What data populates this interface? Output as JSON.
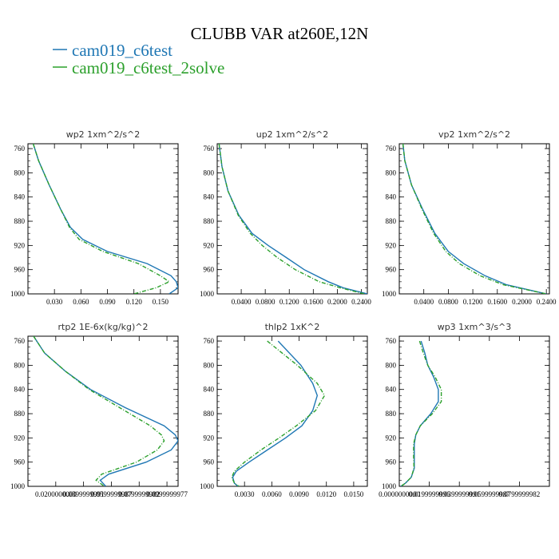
{
  "chart_data": {
    "title": "CLUBB VAR at260E,12N",
    "legend": [
      {
        "name": "cam019_c6test",
        "color": "#1f77b4"
      },
      {
        "name": "cam019_c6test_2solve",
        "color": "#2ca02c"
      }
    ],
    "y_ticks": [
      "760",
      "800",
      "840",
      "880",
      "920",
      "960",
      "1000"
    ],
    "panels": [
      {
        "type": "line",
        "title": "wp2  1xm^2/s^2",
        "xlim": [
          0,
          0.17
        ],
        "ylim": [
          1000,
          752
        ],
        "x_ticks": [
          {
            "v": 0.03,
            "t": "0.030"
          },
          {
            "v": 0.06,
            "t": "0.060"
          },
          {
            "v": 0.09,
            "t": "0.090"
          },
          {
            "v": 0.12,
            "t": "0.120"
          },
          {
            "v": 0.15,
            "t": "0.150"
          }
        ],
        "series": [
          {
            "name": "cam019_c6test",
            "y": [
              752,
              780,
              820,
              860,
              890,
              910,
              930,
              950,
              970,
              980,
              990,
              1000
            ],
            "x": [
              0.006,
              0.012,
              0.024,
              0.037,
              0.048,
              0.062,
              0.09,
              0.135,
              0.162,
              0.168,
              0.17,
              0.16
            ]
          },
          {
            "name": "cam019_c6test_2solve",
            "y": [
              752,
              780,
              820,
              860,
              890,
              910,
              930,
              950,
              970,
              980,
              990,
              1000
            ],
            "x": [
              0.006,
              0.012,
              0.024,
              0.037,
              0.047,
              0.058,
              0.085,
              0.125,
              0.15,
              0.16,
              0.145,
              0.12
            ]
          }
        ]
      },
      {
        "type": "line",
        "title": "up2  1xm^2/s^2",
        "xlim": [
          0,
          0.25
        ],
        "ylim": [
          1000,
          752
        ],
        "x_ticks": [
          {
            "v": 0.04,
            "t": "0.0400"
          },
          {
            "v": 0.08,
            "t": "0.0800"
          },
          {
            "v": 0.12,
            "t": "0.1200"
          },
          {
            "v": 0.16,
            "t": "0.1600"
          },
          {
            "v": 0.2,
            "t": "0.2000"
          },
          {
            "v": 0.24,
            "t": "0.2400"
          }
        ],
        "series": [
          {
            "name": "cam019_c6test",
            "y": [
              752,
              790,
              830,
              870,
              900,
              920,
              940,
              960,
              980,
              990,
              1000
            ],
            "x": [
              0.003,
              0.008,
              0.018,
              0.036,
              0.058,
              0.085,
              0.115,
              0.145,
              0.185,
              0.21,
              0.25
            ]
          },
          {
            "name": "cam019_c6test_2solve",
            "y": [
              752,
              790,
              830,
              870,
              900,
              920,
              940,
              960,
              980,
              990,
              1000
            ],
            "x": [
              0.003,
              0.008,
              0.018,
              0.035,
              0.055,
              0.075,
              0.1,
              0.13,
              0.17,
              0.205,
              0.245
            ]
          }
        ]
      },
      {
        "type": "line",
        "title": "vp2  1xm^2/s^2",
        "xlim": [
          0,
          0.245
        ],
        "ylim": [
          1000,
          752
        ],
        "x_ticks": [
          {
            "v": 0.04,
            "t": "0.0400"
          },
          {
            "v": 0.08,
            "t": "0.0800"
          },
          {
            "v": 0.12,
            "t": "0.1200"
          },
          {
            "v": 0.16,
            "t": "0.1600"
          },
          {
            "v": 0.2,
            "t": "0.2000"
          },
          {
            "v": 0.24,
            "t": "0.2400"
          }
        ],
        "series": [
          {
            "name": "cam019_c6test",
            "y": [
              752,
              780,
              820,
              860,
              900,
              930,
              950,
              970,
              985,
              1000
            ],
            "x": [
              0.006,
              0.009,
              0.02,
              0.038,
              0.058,
              0.08,
              0.105,
              0.14,
              0.175,
              0.24
            ]
          },
          {
            "name": "cam019_c6test_2solve",
            "y": [
              752,
              780,
              820,
              860,
              900,
              930,
              950,
              970,
              985,
              1000
            ],
            "x": [
              0.006,
              0.009,
              0.02,
              0.037,
              0.056,
              0.076,
              0.098,
              0.132,
              0.17,
              0.24
            ]
          }
        ]
      },
      {
        "type": "line",
        "title": "rtp2  1E-6x(kg/kg)^2",
        "xlim": [
          0,
          0.108
        ],
        "ylim": [
          1000,
          752
        ],
        "x_ticks": [
          {
            "v": 0.02,
            "t": "0.0200000000"
          },
          {
            "v": 0.04,
            "t": "0.0399999991"
          },
          {
            "v": 0.06,
            "t": "0.0599999987"
          },
          {
            "v": 0.08,
            "t": "0.0799999982"
          },
          {
            "v": 0.1,
            "t": "0.0999999977"
          }
        ],
        "series": [
          {
            "name": "cam019_c6test",
            "y": [
              752,
              780,
              810,
              840,
              870,
              900,
              915,
              925,
              940,
              960,
              980,
              990,
              1000
            ],
            "x": [
              0.004,
              0.012,
              0.027,
              0.045,
              0.07,
              0.098,
              0.106,
              0.108,
              0.103,
              0.085,
              0.058,
              0.052,
              0.056
            ]
          },
          {
            "name": "cam019_c6test_2solve",
            "y": [
              752,
              780,
              810,
              840,
              870,
              900,
              915,
              925,
              940,
              960,
              980,
              990,
              1000
            ],
            "x": [
              0.004,
              0.012,
              0.027,
              0.044,
              0.066,
              0.088,
              0.096,
              0.098,
              0.093,
              0.078,
              0.053,
              0.049,
              0.055
            ]
          }
        ]
      },
      {
        "type": "line",
        "title": "thlp2  1xK^2",
        "xlim": [
          0,
          0.0165
        ],
        "ylim": [
          1000,
          752
        ],
        "x_ticks": [
          {
            "v": 0.003,
            "t": "0.0030"
          },
          {
            "v": 0.006,
            "t": "0.0060"
          },
          {
            "v": 0.009,
            "t": "0.0090"
          },
          {
            "v": 0.012,
            "t": "0.0120"
          },
          {
            "v": 0.015,
            "t": "0.0150"
          }
        ],
        "series": [
          {
            "name": "cam019_c6test",
            "y": [
              760,
              800,
              830,
              850,
              875,
              900,
              920,
              940,
              960,
              975,
              985,
              995,
              1000
            ],
            "x": [
              0.0067,
              0.0092,
              0.0105,
              0.011,
              0.0105,
              0.0093,
              0.0075,
              0.0055,
              0.0035,
              0.0021,
              0.0017,
              0.0019,
              0.0023
            ]
          },
          {
            "name": "cam019_c6test_2solve",
            "y": [
              760,
              800,
              830,
              850,
              875,
              900,
              920,
              940,
              960,
              975,
              985,
              995,
              1000
            ],
            "x": [
              0.0055,
              0.0088,
              0.011,
              0.0118,
              0.0108,
              0.0087,
              0.0068,
              0.0048,
              0.003,
              0.0019,
              0.0016,
              0.0019,
              0.0024
            ]
          }
        ]
      },
      {
        "type": "line",
        "title": "wp3  1xm^3/s^3",
        "xlim": [
          0,
          0.1
        ],
        "ylim": [
          1000,
          752
        ],
        "x_ticks": [
          {
            "v": 0,
            "t": "0.0000000000"
          },
          {
            "v": 0.02,
            "t": "0.0199999996"
          },
          {
            "v": 0.04,
            "t": "0.0399999991"
          },
          {
            "v": 0.06,
            "t": "0.0599999987"
          },
          {
            "v": 0.08,
            "t": "0.0799999982"
          }
        ],
        "series": [
          {
            "name": "cam019_c6test",
            "y": [
              760,
              780,
              800,
              820,
              840,
              860,
              880,
              900,
              915,
              930,
              950,
              970,
              985,
              995,
              1000
            ],
            "x": [
              0.0145,
              0.017,
              0.019,
              0.023,
              0.026,
              0.026,
              0.021,
              0.014,
              0.011,
              0.01,
              0.01,
              0.01,
              0.008,
              0.004,
              0.001
            ]
          },
          {
            "name": "cam019_c6test_2solve",
            "y": [
              760,
              780,
              800,
              820,
              840,
              860,
              880,
              900,
              915,
              930,
              950,
              970,
              985,
              995,
              1000
            ],
            "x": [
              0.0135,
              0.016,
              0.019,
              0.024,
              0.028,
              0.028,
              0.022,
              0.014,
              0.011,
              0.0095,
              0.0095,
              0.0098,
              0.008,
              0.004,
              0.001
            ]
          }
        ]
      }
    ]
  }
}
